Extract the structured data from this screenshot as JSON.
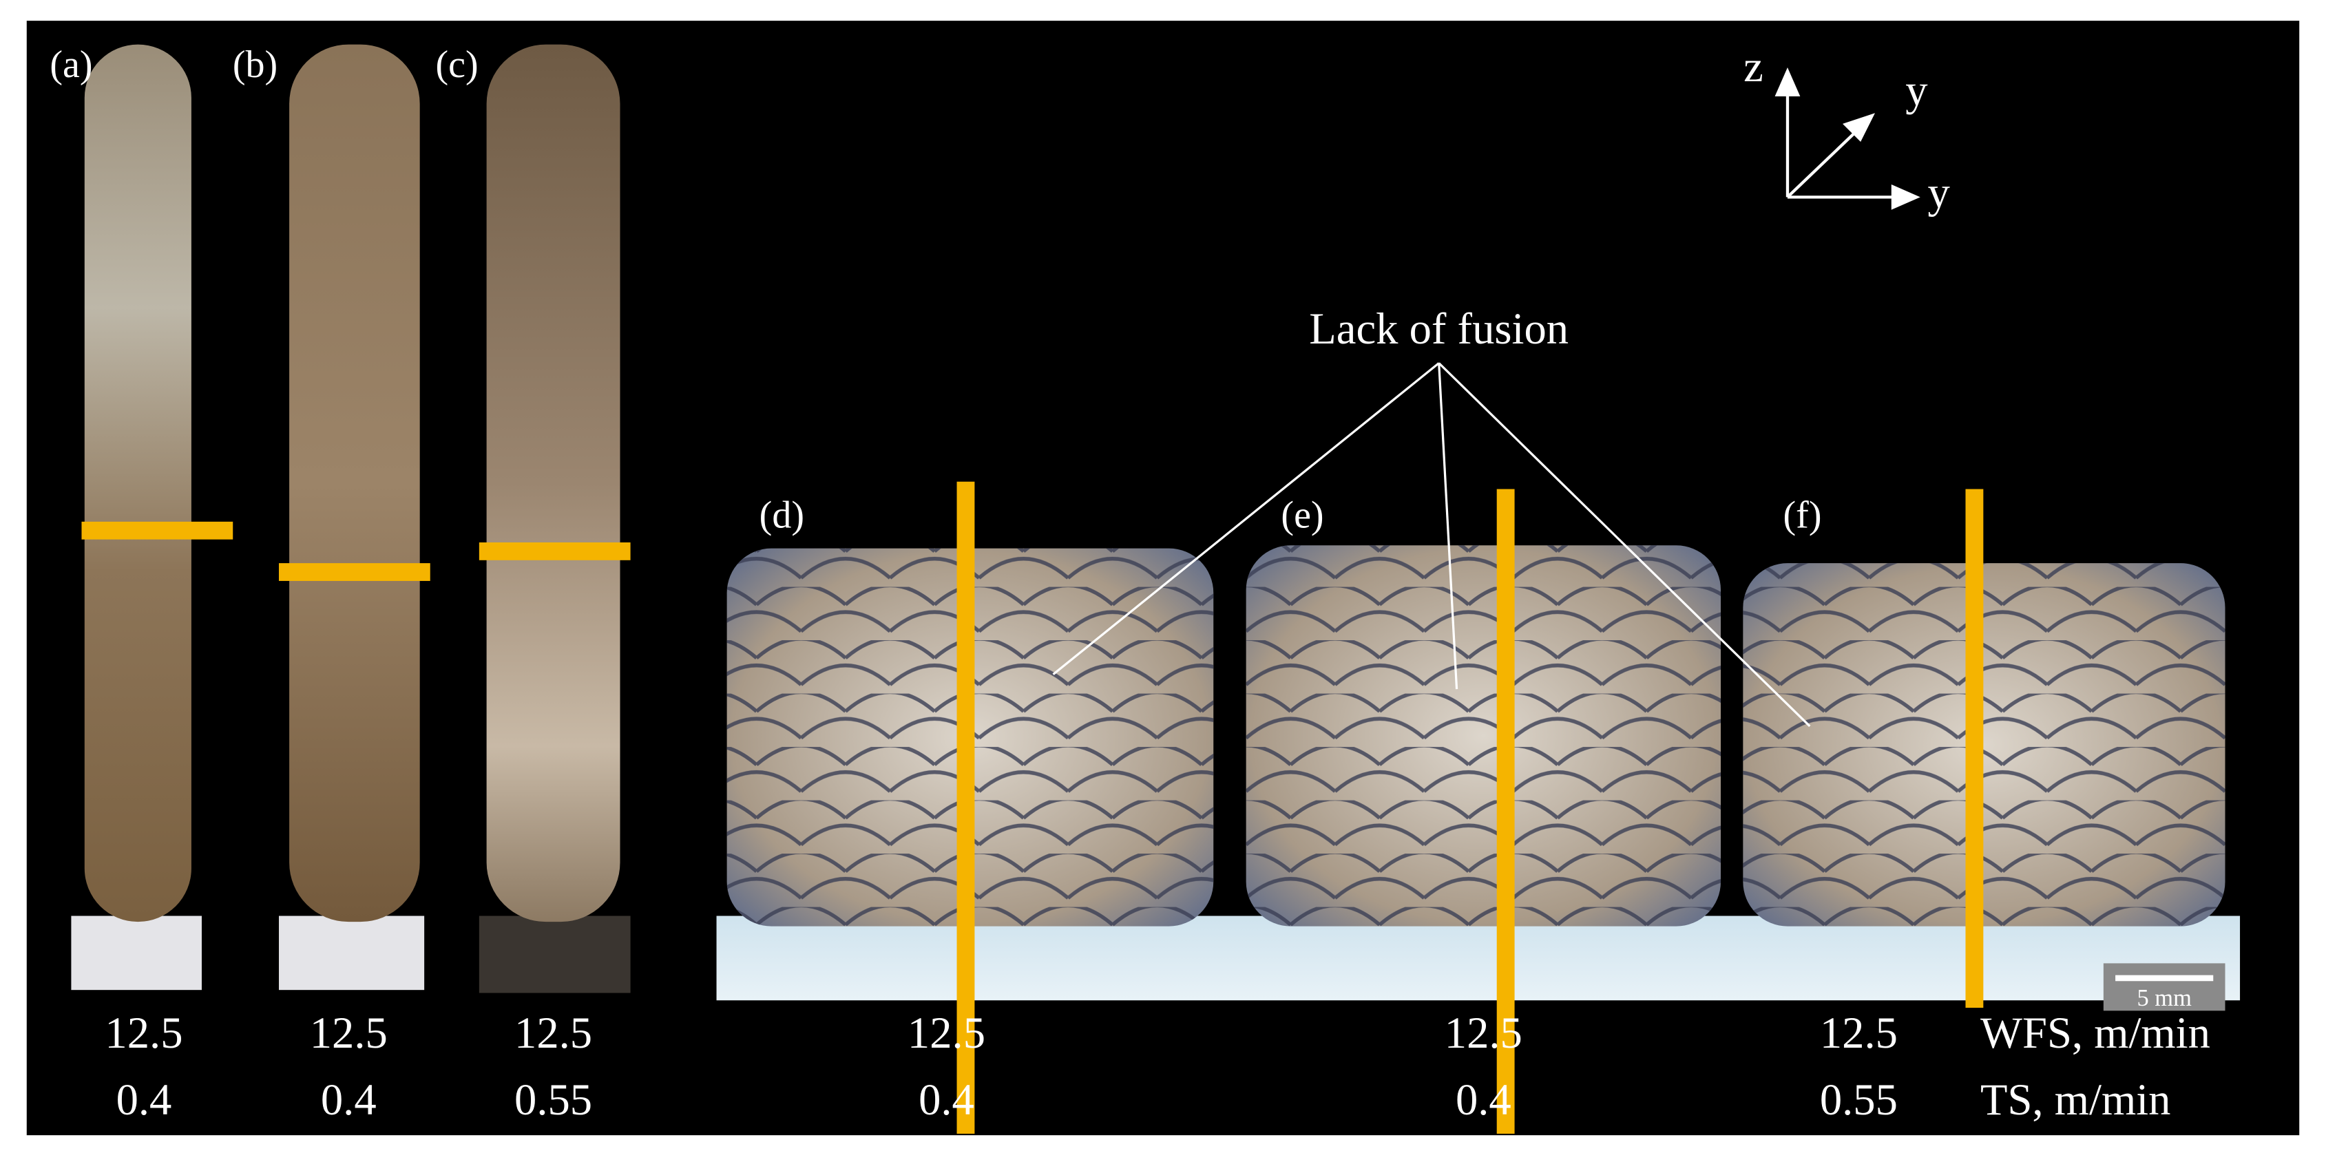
{
  "panels": [
    {
      "label": "(a)",
      "wfs": "12.5",
      "ts": "0.4"
    },
    {
      "label": "(b)",
      "wfs": "12.5",
      "ts": "0.4"
    },
    {
      "label": "(c)",
      "wfs": "12.5",
      "ts": "0.55"
    },
    {
      "label": "(d)",
      "wfs": "12.5",
      "ts": "0.4"
    },
    {
      "label": "(e)",
      "wfs": "12.5",
      "ts": "0.4"
    },
    {
      "label": "(f)",
      "wfs": "12.5",
      "ts": "0.55"
    }
  ],
  "row_labels": {
    "wfs": "WFS, m/min",
    "ts": "TS, m/min"
  },
  "annotation": "Lack of fusion",
  "scale_bar": "5 mm",
  "axes": {
    "vertical": "z",
    "diagonal": "y",
    "horizontal": "y"
  }
}
